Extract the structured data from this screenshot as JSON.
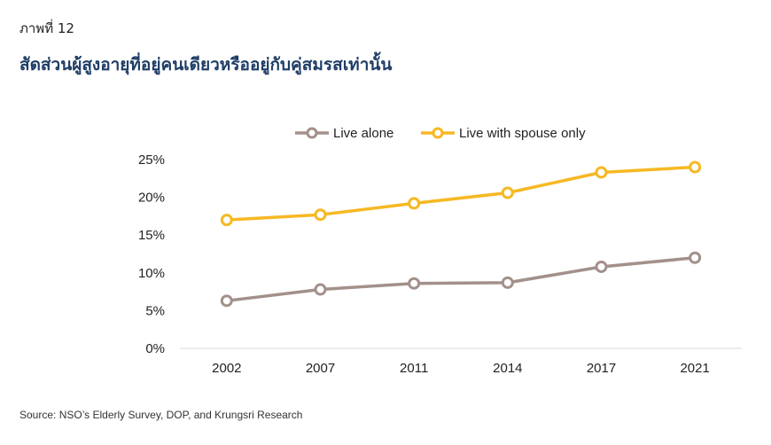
{
  "figure_label": "ภาพที่ 12",
  "figure_title": "สัดส่วนผู้สูงอายุที่อยู่คนเดียวหรืออยู่กับคู่สมรสเท่านั้น",
  "source": "Source: NSO’s Elderly Survey, DOP, and Krungsri Research",
  "colors": {
    "live_alone": "#a3908b",
    "live_with_spouse": "#f6b823",
    "title": "#1f3d66"
  },
  "chart_data": {
    "type": "line",
    "categories": [
      "2002",
      "2007",
      "2011",
      "2014",
      "2017",
      "2021"
    ],
    "series": [
      {
        "name": "Live alone",
        "values": [
          6.3,
          7.8,
          8.6,
          8.7,
          10.8,
          12.0
        ]
      },
      {
        "name": "Live with spouse only",
        "values": [
          17.0,
          17.7,
          19.2,
          20.6,
          23.3,
          24.0
        ]
      }
    ],
    "yticks": [
      "0%",
      "5%",
      "10%",
      "15%",
      "20%",
      "25%"
    ],
    "ylim": [
      0,
      25
    ],
    "ylabel": "",
    "xlabel": "",
    "legend_position": "top-center",
    "grid": false
  }
}
